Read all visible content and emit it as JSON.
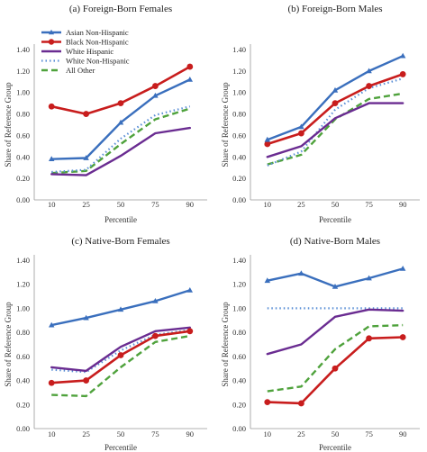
{
  "chart_data": [
    {
      "type": "line",
      "title": "(a) Foreign-Born Females",
      "xlabel": "Percentile",
      "ylabel": "Share of Reference Group",
      "categories": [
        "10",
        "25",
        "50",
        "75",
        "90"
      ],
      "ylim": [
        0,
        1.4
      ],
      "yticks": [
        "0.00",
        "0.20",
        "0.40",
        "0.60",
        "0.80",
        "1.00",
        "1.20",
        "1.40"
      ],
      "legend": "top-left",
      "series": [
        {
          "name": "Asian Non-Hispanic",
          "values": [
            0.38,
            0.39,
            0.72,
            0.97,
            1.12
          ]
        },
        {
          "name": "Black Non-Hispanic",
          "values": [
            0.87,
            0.8,
            0.9,
            1.06,
            1.24
          ]
        },
        {
          "name": "White Hispanic",
          "values": [
            0.24,
            0.23,
            0.41,
            0.62,
            0.67
          ]
        },
        {
          "name": "White Non-Hispanic",
          "values": [
            0.26,
            0.28,
            0.57,
            0.79,
            0.87
          ]
        },
        {
          "name": "All Other",
          "values": [
            0.25,
            0.27,
            0.52,
            0.75,
            0.85
          ]
        }
      ]
    },
    {
      "type": "line",
      "title": "(b) Foreign-Born Males",
      "xlabel": "Percentile",
      "ylabel": "Share of Reference Group",
      "categories": [
        "10",
        "25",
        "50",
        "75",
        "90"
      ],
      "ylim": [
        0,
        1.4
      ],
      "yticks": [
        "0.00",
        "0.20",
        "0.40",
        "0.60",
        "0.80",
        "1.00",
        "1.20",
        "1.40"
      ],
      "series": [
        {
          "name": "Asian Non-Hispanic",
          "values": [
            0.56,
            0.68,
            1.02,
            1.2,
            1.34
          ]
        },
        {
          "name": "Black Non-Hispanic",
          "values": [
            0.52,
            0.62,
            0.9,
            1.06,
            1.17
          ]
        },
        {
          "name": "White Hispanic",
          "values": [
            0.4,
            0.5,
            0.76,
            0.9,
            0.9
          ]
        },
        {
          "name": "White Non-Hispanic",
          "values": [
            0.32,
            0.45,
            0.84,
            1.04,
            1.13
          ]
        },
        {
          "name": "All Other",
          "values": [
            0.33,
            0.42,
            0.75,
            0.94,
            0.99
          ]
        }
      ]
    },
    {
      "type": "line",
      "title": "(c) Native-Born Females",
      "xlabel": "Percentile",
      "ylabel": "Share of Reference Group",
      "categories": [
        "10",
        "25",
        "50",
        "75",
        "90"
      ],
      "ylim": [
        0,
        1.4
      ],
      "yticks": [
        "0.00",
        "0.20",
        "0.40",
        "0.60",
        "0.80",
        "1.00",
        "1.20",
        "1.40"
      ],
      "series": [
        {
          "name": "Asian Non-Hispanic",
          "values": [
            0.86,
            0.92,
            0.99,
            1.06,
            1.15
          ]
        },
        {
          "name": "Black Non-Hispanic",
          "values": [
            0.38,
            0.4,
            0.61,
            0.77,
            0.81
          ]
        },
        {
          "name": "White Hispanic",
          "values": [
            0.51,
            0.48,
            0.68,
            0.81,
            0.84
          ]
        },
        {
          "name": "White Non-Hispanic",
          "values": [
            0.49,
            0.47,
            0.65,
            0.78,
            0.82
          ]
        },
        {
          "name": "All Other",
          "values": [
            0.28,
            0.27,
            0.51,
            0.72,
            0.77
          ]
        }
      ]
    },
    {
      "type": "line",
      "title": "(d) Native-Born Males",
      "xlabel": "Percentile",
      "ylabel": "Share of Reference Group",
      "categories": [
        "10",
        "25",
        "50",
        "75",
        "90"
      ],
      "ylim": [
        0,
        1.4
      ],
      "yticks": [
        "0.00",
        "0.20",
        "0.40",
        "0.60",
        "0.80",
        "1.00",
        "1.20",
        "1.40"
      ],
      "series": [
        {
          "name": "Asian Non-Hispanic",
          "values": [
            1.23,
            1.29,
            1.18,
            1.25,
            1.33
          ]
        },
        {
          "name": "Black Non-Hispanic",
          "values": [
            0.22,
            0.21,
            0.5,
            0.75,
            0.76
          ]
        },
        {
          "name": "White Hispanic",
          "values": [
            0.62,
            0.7,
            0.93,
            0.99,
            0.98
          ]
        },
        {
          "name": "White Non-Hispanic",
          "values": [
            1.0,
            1.0,
            1.0,
            1.0,
            1.0
          ]
        },
        {
          "name": "All Other",
          "values": [
            0.31,
            0.35,
            0.66,
            0.85,
            0.86
          ]
        }
      ]
    }
  ],
  "series_styles": [
    {
      "color": "#3a6fbd",
      "dash": "",
      "marker": "triangle",
      "width": 2.4
    },
    {
      "color": "#c81d1d",
      "dash": "",
      "marker": "circle",
      "width": 2.6
    },
    {
      "color": "#6a2c91",
      "dash": "",
      "marker": "none",
      "width": 2.4
    },
    {
      "color": "#5b8fd6",
      "dash": "1.5,3",
      "marker": "none",
      "width": 2.2
    },
    {
      "color": "#4fa23c",
      "dash": "7,4",
      "marker": "none",
      "width": 2.4
    }
  ]
}
